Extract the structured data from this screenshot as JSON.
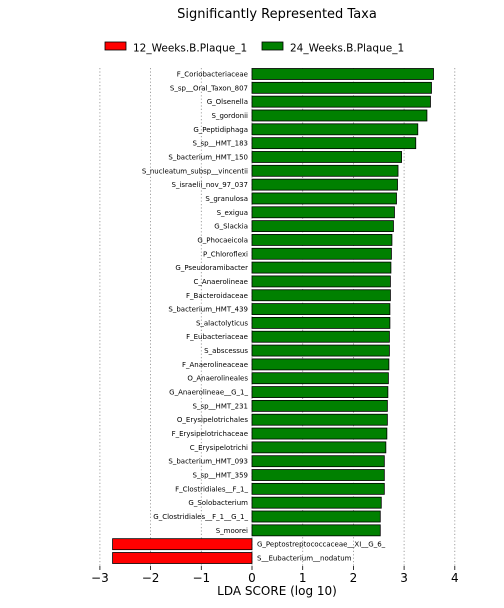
{
  "chart_data": {
    "type": "bar",
    "orientation": "horizontal",
    "title": "Significantly Represented Taxa",
    "xlabel": "LDA SCORE (log 10)",
    "ylabel": "",
    "xlim": [
      -3,
      4
    ],
    "xticks": [
      -3,
      -2,
      -1,
      0,
      1,
      2,
      3,
      4
    ],
    "xtick_labels": [
      "−3",
      "−2",
      "−1",
      "0",
      "1",
      "2",
      "3",
      "4"
    ],
    "grid": "vertical dotted at ticks",
    "legend_position": "top",
    "series": [
      {
        "name": "12_Weeks.B.Plaque_1",
        "color": "#ff0000"
      },
      {
        "name": "24_Weeks.B.Plaque_1",
        "color": "#008000"
      }
    ],
    "categories": [
      "F_Coriobacteriaceae",
      "S_sp__Oral_Taxon_807",
      "G_Olsenella",
      "S_gordonii",
      "G_Peptidiphaga",
      "S_sp__HMT_183",
      "S_bacterium_HMT_150",
      "S_nucleatum_subsp__vincentii",
      "S_israelii_nov_97_037",
      "S_granulosa",
      "S_exigua",
      "G_Slackia",
      "G_Phocaeicola",
      "P_Chloroflexi",
      "G_Pseudoramibacter",
      "C_Anaerolineae",
      "F_Bacteroidaceae",
      "S_bacterium_HMT_439",
      "S_alactolyticus",
      "F_Eubacteriaceae",
      "S_abscessus",
      "F_Anaerolineaceae",
      "O_Anaerolineales",
      "G_Anaerolineae__G_1_",
      "S_sp__HMT_231",
      "O_Erysipelotrichales",
      "F_Erysipelotrichaceae",
      "C_Erysipelotrichi",
      "S_bacterium_HMT_093",
      "S_sp__HMT_359",
      "F_Clostridiales__F_1_",
      "G_Solobacterium",
      "G_Clostridiales__F_1__G_1_",
      "S_moorei",
      "G_Peptostreptococcaceae__XI__G_6_",
      "S__Eubacterium__nodatum"
    ],
    "values": [
      3.58,
      3.54,
      3.52,
      3.45,
      3.27,
      3.23,
      2.95,
      2.88,
      2.87,
      2.85,
      2.81,
      2.79,
      2.76,
      2.75,
      2.74,
      2.73,
      2.73,
      2.72,
      2.72,
      2.71,
      2.71,
      2.7,
      2.69,
      2.68,
      2.67,
      2.67,
      2.66,
      2.64,
      2.61,
      2.61,
      2.61,
      2.55,
      2.53,
      2.53,
      -2.75,
      -2.75
    ],
    "groups": [
      "24_Weeks.B.Plaque_1",
      "24_Weeks.B.Plaque_1",
      "24_Weeks.B.Plaque_1",
      "24_Weeks.B.Plaque_1",
      "24_Weeks.B.Plaque_1",
      "24_Weeks.B.Plaque_1",
      "24_Weeks.B.Plaque_1",
      "24_Weeks.B.Plaque_1",
      "24_Weeks.B.Plaque_1",
      "24_Weeks.B.Plaque_1",
      "24_Weeks.B.Plaque_1",
      "24_Weeks.B.Plaque_1",
      "24_Weeks.B.Plaque_1",
      "24_Weeks.B.Plaque_1",
      "24_Weeks.B.Plaque_1",
      "24_Weeks.B.Plaque_1",
      "24_Weeks.B.Plaque_1",
      "24_Weeks.B.Plaque_1",
      "24_Weeks.B.Plaque_1",
      "24_Weeks.B.Plaque_1",
      "24_Weeks.B.Plaque_1",
      "24_Weeks.B.Plaque_1",
      "24_Weeks.B.Plaque_1",
      "24_Weeks.B.Plaque_1",
      "24_Weeks.B.Plaque_1",
      "24_Weeks.B.Plaque_1",
      "24_Weeks.B.Plaque_1",
      "24_Weeks.B.Plaque_1",
      "24_Weeks.B.Plaque_1",
      "24_Weeks.B.Plaque_1",
      "24_Weeks.B.Plaque_1",
      "24_Weeks.B.Plaque_1",
      "24_Weeks.B.Plaque_1",
      "24_Weeks.B.Plaque_1",
      "12_Weeks.B.Plaque_1",
      "12_Weeks.B.Plaque_1"
    ]
  }
}
